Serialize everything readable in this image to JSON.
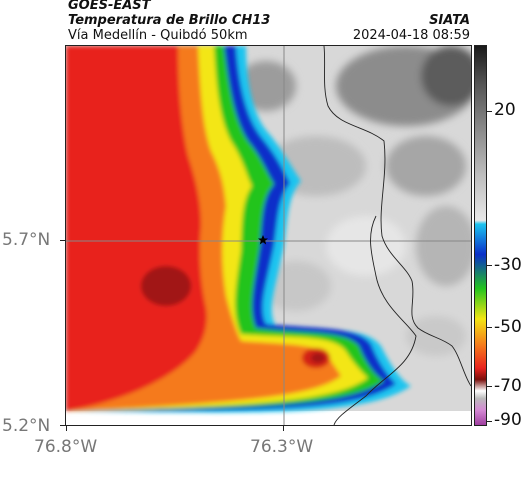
{
  "header": {
    "satellite": "GOES-EAST",
    "product": "Temperatura de Brillo CH13",
    "route": "Vía Medellín - Quibdó 50km",
    "org": "SIATA",
    "datetime": "2024-04-18 08:59"
  },
  "map": {
    "lat_labels": [
      "5.7°N",
      "5.2°N"
    ],
    "lon_labels": [
      "76.8°W",
      "76.3°W"
    ],
    "marker_icon": "star-icon",
    "colors": {
      "warm_red": "#e8231e",
      "dark_red": "#a11512",
      "orange": "#f57a1c",
      "yellow": "#f3e614",
      "green": "#23c41e",
      "blue": "#0a2fc9",
      "cyan": "#1cc4ef",
      "grey_light": "#dcdcdc",
      "grey_dark": "#6e6e6e"
    }
  },
  "colorbar": {
    "ticks": [
      "20",
      "-30",
      "-50",
      "-70",
      "-90"
    ]
  }
}
